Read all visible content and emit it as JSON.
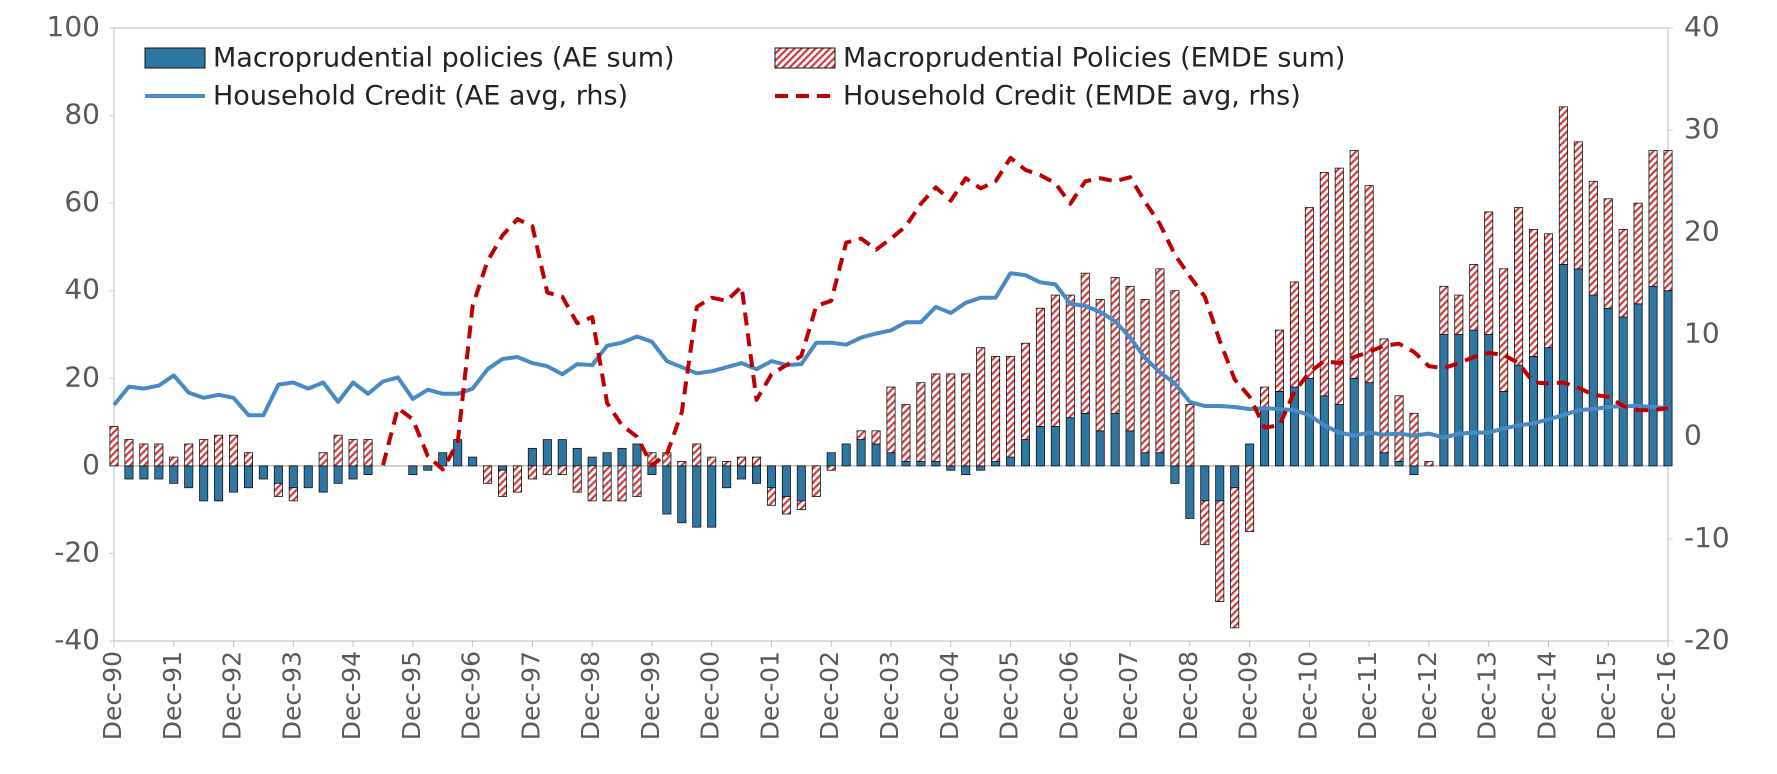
{
  "chart_data": {
    "type": "bar",
    "categories": [
      "Dec-90",
      null,
      null,
      null,
      "Dec-91",
      null,
      null,
      null,
      "Dec-92",
      null,
      null,
      null,
      "Dec-93",
      null,
      null,
      null,
      "Dec-94",
      null,
      null,
      null,
      "Dec-95",
      null,
      null,
      null,
      "Dec-96",
      null,
      null,
      null,
      "Dec-97",
      null,
      null,
      null,
      "Dec-98",
      null,
      null,
      null,
      "Dec-99",
      null,
      null,
      null,
      "Dec-00",
      null,
      null,
      null,
      "Dec-01",
      null,
      null,
      null,
      "Dec-02",
      null,
      null,
      null,
      "Dec-03",
      null,
      null,
      null,
      "Dec-04",
      null,
      null,
      null,
      "Dec-05",
      null,
      null,
      null,
      "Dec-06",
      null,
      null,
      null,
      "Dec-07",
      null,
      null,
      null,
      "Dec-08",
      null,
      null,
      null,
      "Dec-09",
      null,
      null,
      null,
      "Dec-10",
      null,
      null,
      null,
      "Dec-11",
      null,
      null,
      null,
      "Dec-12",
      null,
      null,
      null,
      "Dec-13",
      null,
      null,
      null,
      "Dec-14",
      null,
      null,
      null,
      "Dec-15",
      null,
      null,
      null,
      "Dec-16"
    ],
    "series": [
      {
        "name": "Macroprudential policies (AE sum)",
        "type": "bar",
        "color": "#2f77a3",
        "values": [
          0,
          -3,
          -3,
          -3,
          -4,
          -5,
          -8,
          -8,
          -6,
          -5,
          -3,
          -4,
          -5,
          -5,
          -6,
          -4,
          -3,
          -2,
          0,
          0,
          -2,
          -1,
          3,
          6,
          2,
          0,
          -1,
          0,
          4,
          6,
          6,
          4,
          2,
          3,
          4,
          5,
          -2,
          -11,
          -13,
          -14,
          -14,
          -5,
          -3,
          -4,
          -5,
          -7,
          -8,
          0,
          3,
          5,
          6,
          5,
          3,
          1,
          1,
          1,
          -1,
          -2,
          -1,
          1,
          2,
          6,
          9,
          9,
          11,
          12,
          8,
          12,
          8,
          3,
          3,
          -4,
          -12,
          -8,
          -8,
          -5,
          5,
          13,
          17,
          18,
          20,
          16,
          14,
          20,
          19,
          3,
          1,
          -2,
          0,
          30,
          30,
          31,
          30,
          17,
          23,
          25,
          27,
          46,
          45,
          39,
          36,
          34,
          37,
          41,
          40
        ]
      },
      {
        "name": "Macroprudential Policies (EMDE sum)",
        "type": "bar",
        "color": "#c00000",
        "values": [
          9,
          6,
          5,
          5,
          2,
          5,
          6,
          7,
          7,
          3,
          0,
          -3,
          -3,
          0,
          3,
          7,
          6,
          6,
          0,
          0,
          0,
          0,
          0,
          0,
          0,
          -4,
          -6,
          -6,
          -3,
          -2,
          -2,
          -6,
          -8,
          -8,
          -8,
          -7,
          3,
          3,
          1,
          5,
          2,
          1,
          2,
          2,
          -4,
          -4,
          -2,
          -7,
          -1,
          0,
          2,
          3,
          15,
          13,
          18,
          20,
          21,
          21,
          27,
          24,
          23,
          22,
          27,
          30,
          28,
          32,
          30,
          31,
          33,
          35,
          42,
          40,
          14,
          -10,
          -23,
          -32,
          -15,
          5,
          14,
          24,
          39,
          51,
          54,
          52,
          45,
          26,
          15,
          12,
          1,
          11,
          9,
          15,
          28,
          28,
          36,
          29,
          26,
          36,
          29,
          26,
          25,
          20,
          23,
          31,
          32
        ]
      },
      {
        "name": "Household Credit (AE avg, rhs)",
        "type": "line",
        "axis": "y2",
        "color": "#4a8ac4",
        "values": [
          3.1,
          4.9,
          4.7,
          5,
          6,
          4.3,
          3.8,
          4.1,
          3.8,
          2.1,
          2.1,
          5.1,
          5.3,
          4.7,
          5.3,
          3.4,
          5.3,
          4.2,
          5.4,
          5.8,
          3.7,
          4.6,
          4.2,
          4.2,
          4.7,
          6.6,
          7.6,
          7.8,
          7.2,
          6.9,
          6.1,
          7.1,
          7,
          8.9,
          9.2,
          9.8,
          9.3,
          7.4,
          6.8,
          6.2,
          6.4,
          6.8,
          7.2,
          6.6,
          7.4,
          7,
          7.1,
          9.2,
          9.2,
          9,
          9.7,
          10.1,
          10.4,
          11.2,
          11.2,
          12.7,
          12.1,
          13.1,
          13.6,
          13.6,
          16,
          15.8,
          15.1,
          14.9,
          13,
          12.8,
          12.2,
          11.3,
          9.7,
          7.7,
          6.3,
          5.2,
          3.4,
          3,
          3,
          2.9,
          2.7,
          2.8,
          2.7,
          2.6,
          2.1,
          1.1,
          0.4,
          0.1,
          0.4,
          0.2,
          0.3,
          0.1,
          0.3,
          -0.1,
          0.3,
          0.4,
          0.4,
          0.8,
          1.1,
          1.3,
          1.7,
          2.1,
          2.6,
          2.7,
          2.9,
          3,
          3,
          2.9,
          2.8
        ]
      },
      {
        "name": "Household Credit (EMDE avg, rhs)",
        "type": "line",
        "axis": "y2",
        "dashed": true,
        "color": "#c00000",
        "values": [
          null,
          null,
          null,
          null,
          null,
          null,
          null,
          null,
          null,
          null,
          null,
          null,
          null,
          null,
          null,
          null,
          null,
          null,
          -2.8,
          2.8,
          1.7,
          -1.9,
          -3.2,
          -0.6,
          12.8,
          17.2,
          19.7,
          21.3,
          20.6,
          14.1,
          13.7,
          11.1,
          11.7,
          3.3,
          1.1,
          0,
          -2.8,
          -1.7,
          2.4,
          12.7,
          13.6,
          13.3,
          14.7,
          3.6,
          6.1,
          7,
          7.9,
          12.8,
          13.3,
          19,
          19.4,
          18.3,
          19.4,
          20.6,
          22.8,
          24.4,
          23.1,
          25.3,
          24.3,
          25,
          27.3,
          26.1,
          25.6,
          24.8,
          22.8,
          25,
          25.3,
          25,
          25.4,
          23,
          20.8,
          17.8,
          15.7,
          13.7,
          9.4,
          5.6,
          3.9,
          0.9,
          1.1,
          4.4,
          6.3,
          7.4,
          7.2,
          7.8,
          8.3,
          8.9,
          9.1,
          8.3,
          6.9,
          6.7,
          7.2,
          7.8,
          8.2,
          8,
          7.2,
          5.3,
          5.2,
          5.3,
          4.8,
          4.1,
          3.9,
          3,
          2.6,
          2.6,
          2.8
        ]
      }
    ],
    "stacked": true,
    "ylim": [
      -40,
      100
    ],
    "yticks": [
      -40,
      -20,
      0,
      20,
      40,
      60,
      80,
      100
    ],
    "y2lim": [
      -20,
      40
    ],
    "y2ticks": [
      -20,
      -10,
      0,
      10,
      20,
      30,
      40
    ],
    "grid": false,
    "legend": "top-left"
  }
}
